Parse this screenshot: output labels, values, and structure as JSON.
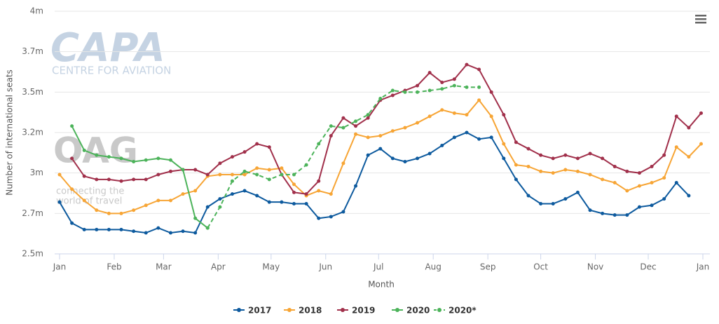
{
  "chart_data": {
    "type": "line",
    "y_label": "Number of international seats",
    "x_label": "Month",
    "watermark_texts": [
      "CAPA",
      "CENTRE FOR AVIATION",
      "OAG",
      "connecting the",
      "world of travel"
    ],
    "x": [
      0,
      7,
      14,
      21,
      28,
      35,
      42,
      49,
      56,
      63,
      70,
      77,
      84,
      91,
      98,
      105,
      112,
      119,
      126,
      133,
      140,
      147,
      154,
      161,
      168,
      175,
      182,
      189,
      196,
      203,
      210,
      217,
      224,
      231,
      238,
      245,
      252,
      259,
      266,
      273,
      280,
      287,
      294,
      301,
      308,
      315,
      322,
      329,
      336,
      343,
      350,
      357,
      364
    ],
    "xlim": [
      0,
      365
    ],
    "xticks": [
      {
        "value": 0,
        "label": "Jan"
      },
      {
        "value": 31,
        "label": "Feb"
      },
      {
        "value": 59,
        "label": "Mar"
      },
      {
        "value": 90,
        "label": "Apr"
      },
      {
        "value": 120,
        "label": "May"
      },
      {
        "value": 151,
        "label": "Jun"
      },
      {
        "value": 181,
        "label": "Jul"
      },
      {
        "value": 212,
        "label": "Aug"
      },
      {
        "value": 243,
        "label": "Sep"
      },
      {
        "value": 273,
        "label": "Oct"
      },
      {
        "value": 304,
        "label": "Nov"
      },
      {
        "value": 334,
        "label": "Dec"
      },
      {
        "value": 365,
        "label": "Jan"
      }
    ],
    "ylim": [
      2.5,
      4
    ],
    "yticks": [
      {
        "value": 2.5,
        "label": "2.5m"
      },
      {
        "value": 2.75,
        "label": "2.7m"
      },
      {
        "value": 3,
        "label": "3m"
      },
      {
        "value": 3.25,
        "label": "3.2m"
      },
      {
        "value": 3.5,
        "label": "3.5m"
      },
      {
        "value": 3.75,
        "label": "3.7m"
      },
      {
        "value": 4,
        "label": "4m"
      }
    ],
    "grid": true,
    "legend": "bottom",
    "series": [
      {
        "name": "2017",
        "color": "#0d5a9e",
        "dashed": false,
        "values": [
          2.82,
          2.69,
          2.65,
          2.65,
          2.65,
          2.65,
          2.64,
          2.63,
          2.66,
          2.63,
          2.64,
          2.63,
          2.79,
          2.84,
          2.87,
          2.89,
          2.86,
          2.82,
          2.82,
          2.81,
          2.81,
          2.72,
          2.73,
          2.76,
          2.92,
          3.11,
          3.15,
          3.09,
          3.07,
          3.09,
          3.12,
          3.17,
          3.22,
          3.25,
          3.21,
          3.22,
          3.09,
          2.96,
          2.86,
          2.81,
          2.81,
          2.84,
          2.88,
          2.77,
          2.75,
          2.74,
          2.74,
          2.79,
          2.8,
          2.84,
          2.94,
          2.86,
          null
        ]
      },
      {
        "name": "2018",
        "color": "#f7a535",
        "dashed": false,
        "values": [
          2.99,
          2.9,
          2.83,
          2.77,
          2.75,
          2.75,
          2.77,
          2.8,
          2.83,
          2.83,
          2.87,
          2.89,
          2.98,
          2.99,
          2.99,
          2.99,
          3.03,
          3.02,
          3.03,
          2.93,
          2.86,
          2.89,
          2.87,
          3.06,
          3.24,
          3.22,
          3.23,
          3.26,
          3.28,
          3.31,
          3.35,
          3.39,
          3.37,
          3.36,
          3.45,
          3.35,
          3.18,
          3.05,
          3.04,
          3.01,
          3.0,
          3.02,
          3.01,
          2.99,
          2.96,
          2.94,
          2.89,
          2.92,
          2.94,
          2.97,
          3.16,
          3.1,
          3.18
        ]
      },
      {
        "name": "2019",
        "color": "#a1304b",
        "dashed": false,
        "values": [
          null,
          3.09,
          2.98,
          2.96,
          2.96,
          2.95,
          2.96,
          2.96,
          2.99,
          3.01,
          3.02,
          3.02,
          2.99,
          3.06,
          3.1,
          3.13,
          3.18,
          3.16,
          2.99,
          2.88,
          2.87,
          2.95,
          3.23,
          3.34,
          3.29,
          3.34,
          3.45,
          3.48,
          3.51,
          3.54,
          3.62,
          3.56,
          3.58,
          3.67,
          3.64,
          3.5,
          3.36,
          3.19,
          3.15,
          3.11,
          3.09,
          3.11,
          3.09,
          3.12,
          3.09,
          3.04,
          3.01,
          3.0,
          3.04,
          3.11,
          3.35,
          3.28,
          3.37
        ]
      },
      {
        "name": "2020",
        "color": "#4cb35a",
        "dashed": false,
        "values": [
          null,
          3.29,
          3.14,
          3.11,
          3.1,
          3.09,
          3.07,
          3.08,
          3.09,
          3.08,
          3.02,
          2.72,
          2.66,
          null,
          null,
          null,
          null,
          null,
          null,
          null,
          null,
          null,
          null,
          null,
          null,
          null,
          null,
          null,
          null,
          null,
          null,
          null,
          null,
          null,
          null,
          null,
          null,
          null,
          null,
          null,
          null,
          null,
          null,
          null,
          null,
          null,
          null,
          null,
          null,
          null,
          null,
          null,
          null
        ]
      },
      {
        "name": "2020*",
        "color": "#4cb35a",
        "dashed": true,
        "values": [
          null,
          null,
          null,
          null,
          null,
          null,
          null,
          null,
          null,
          null,
          null,
          null,
          2.66,
          2.79,
          2.95,
          3.01,
          2.99,
          2.96,
          2.99,
          2.99,
          3.05,
          3.18,
          3.29,
          3.28,
          3.32,
          3.36,
          3.46,
          3.51,
          3.5,
          3.5,
          3.51,
          3.52,
          3.54,
          3.53,
          3.53,
          null,
          null,
          null,
          null,
          null,
          null,
          null,
          null,
          null,
          null,
          null,
          null,
          null,
          null,
          null,
          null,
          null,
          null
        ]
      }
    ]
  }
}
